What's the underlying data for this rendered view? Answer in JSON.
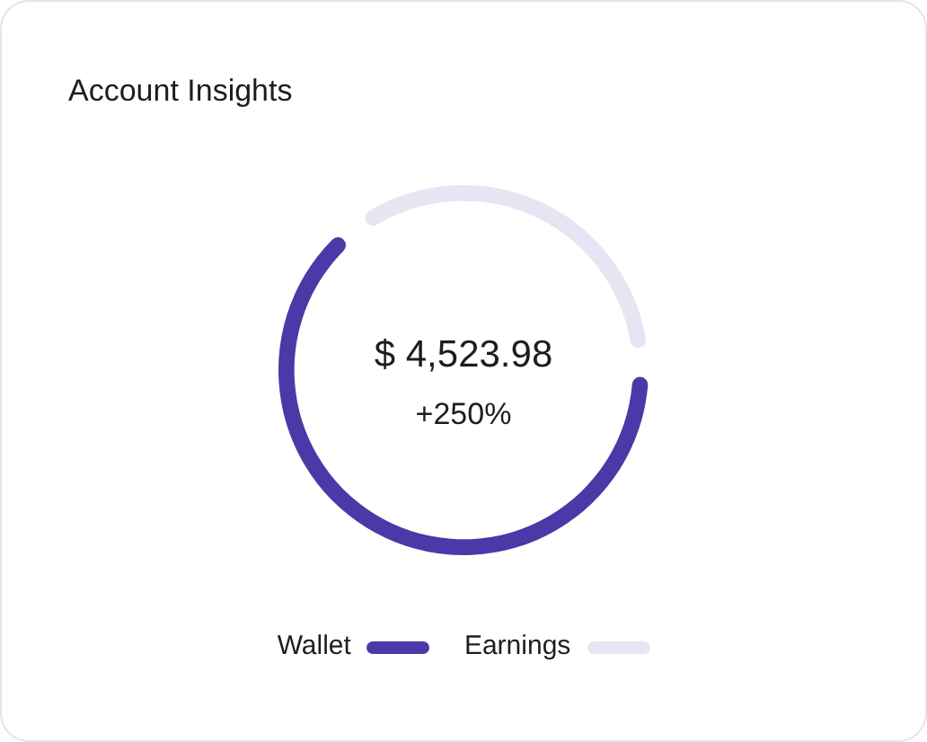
{
  "chart_data": {
    "type": "donut",
    "title": "Account Insights",
    "categories": [
      "Wallet",
      "Earnings"
    ],
    "values": [
      66,
      34
    ],
    "colors": [
      "#4a39a7",
      "#e7e5f3"
    ],
    "legend": "bottom",
    "annotations": [
      "$ 4,523.98",
      "+250%"
    ]
  }
}
